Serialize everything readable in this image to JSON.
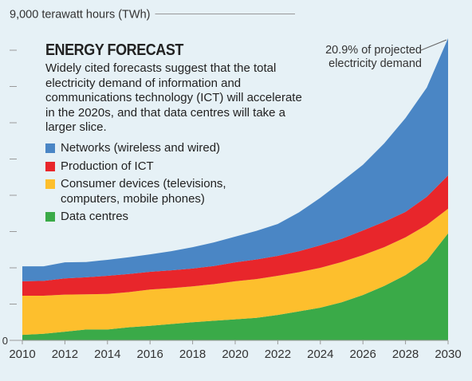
{
  "chart_data": {
    "type": "stacked-area",
    "title": "ENERGY FORECAST",
    "description": "Widely cited forecasts suggest that the total electricity demand of information and communications technology (ICT) will accelerate in the 2020s, and that data centres will take a larger slice.",
    "annotation": [
      "20.9% of projected",
      "electricity demand"
    ],
    "x": [
      2010,
      2011,
      2012,
      2013,
      2014,
      2015,
      2016,
      2017,
      2018,
      2019,
      2020,
      2021,
      2022,
      2023,
      2024,
      2025,
      2026,
      2027,
      2028,
      2029,
      2030
    ],
    "series": [
      {
        "name": "Data centres",
        "color": "#3aaa48",
        "values": [
          150,
          180,
          240,
          300,
          300,
          360,
          400,
          450,
          500,
          540,
          580,
          620,
          700,
          800,
          900,
          1050,
          1250,
          1500,
          1800,
          2200,
          2950
        ]
      },
      {
        "name": "Consumer devices (televisions, computers, mobile phones)",
        "color": "#fdbf2d",
        "values": [
          1080,
          1050,
          1020,
          970,
          980,
          970,
          1000,
          990,
          990,
          1010,
          1050,
          1070,
          1080,
          1080,
          1100,
          1110,
          1100,
          1070,
          1040,
          980,
          680
        ]
      },
      {
        "name": "Production of ICT",
        "color": "#e8262b",
        "values": [
          400,
          410,
          450,
          470,
          500,
          500,
          490,
          490,
          490,
          500,
          520,
          540,
          550,
          580,
          620,
          640,
          680,
          700,
          700,
          780,
          920
        ]
      },
      {
        "name": "Networks (wireless and wired)",
        "color": "#4a86c5",
        "values": [
          410,
          400,
          440,
          420,
          440,
          460,
          480,
          530,
          590,
          650,
          710,
          790,
          880,
          1070,
          1310,
          1580,
          1810,
          2160,
          2590,
          3010,
          3780
        ]
      }
    ],
    "legend_order": [
      3,
      2,
      1,
      0
    ],
    "xlim": [
      2010,
      2030
    ],
    "xticks": [
      2010,
      2012,
      2014,
      2016,
      2018,
      2020,
      2022,
      2024,
      2026,
      2028,
      2030
    ],
    "ylim": [
      0,
      9000
    ],
    "yticks": [
      0,
      {
        "value": 9000,
        "label": "9,000 terawatt hours (TWh)"
      }
    ],
    "minor_yticks": [
      1000,
      2000,
      3000,
      4000,
      5000,
      6000,
      7000,
      8000
    ]
  }
}
